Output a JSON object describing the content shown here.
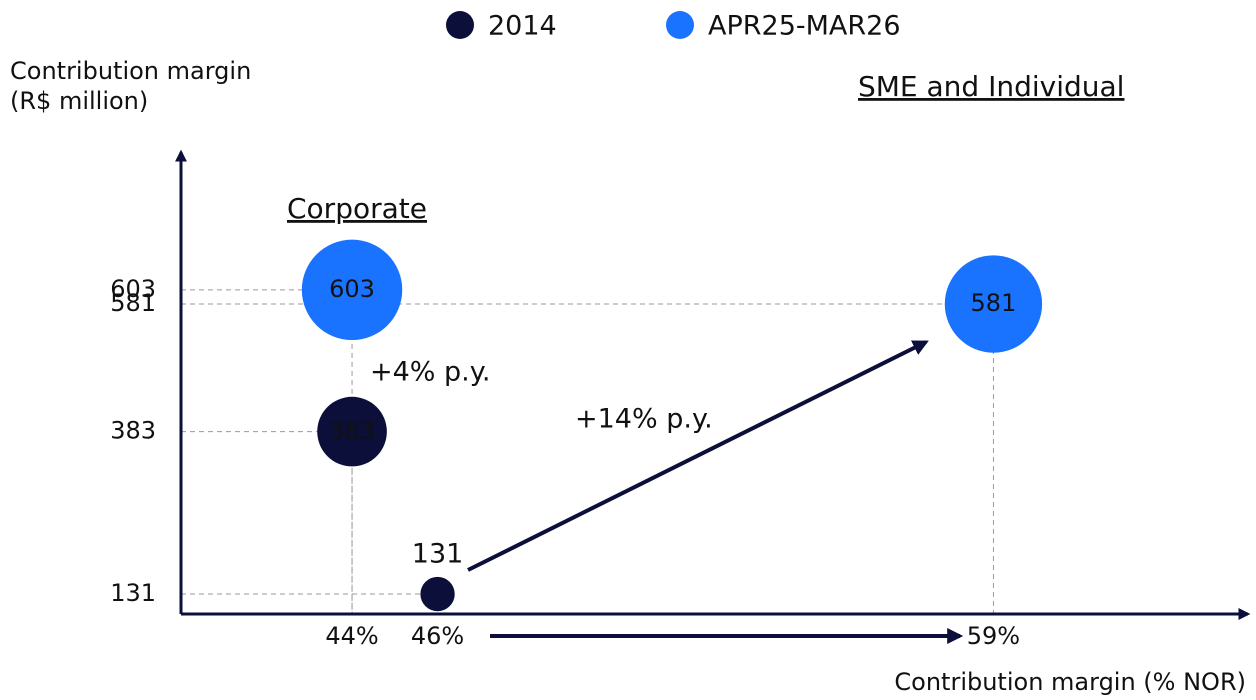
{
  "chart_data": {
    "type": "scatter",
    "y_label": [
      "Contribution margin",
      "(R$ million)"
    ],
    "x_label": "Contribution margin (% NOR)",
    "annotations": [
      "Corporate",
      "SME and Individual",
      "+4% p.y.",
      "+14% p.y."
    ],
    "xlim": [
      40,
      65
    ],
    "ylim": [
      100,
      820
    ],
    "xticks": [
      {
        "value": 44,
        "label": "44%"
      },
      {
        "value": 46,
        "label": "46%"
      },
      {
        "value": 59,
        "label": "59%"
      }
    ],
    "yticks": [
      131,
      383,
      581,
      603
    ],
    "series": [
      {
        "name": "2014",
        "color": "#0b0f3a",
        "x": [
          44,
          46
        ],
        "values": [
          383,
          131
        ]
      },
      {
        "name": "APR25-MAR26",
        "color": "#1a73ff",
        "x": [
          44,
          59
        ],
        "values": [
          603,
          581
        ]
      }
    ]
  }
}
